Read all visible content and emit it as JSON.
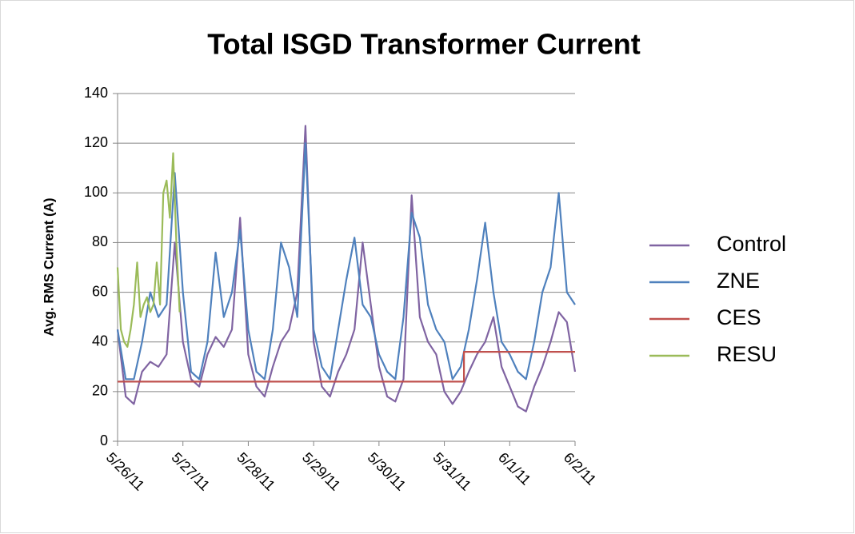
{
  "chart_data": {
    "type": "line",
    "title": "Total ISGD Transformer Current",
    "y_label": "Avg. RMS Current (A)",
    "xlim": [
      0,
      7
    ],
    "xticks": [
      {
        "value": 0,
        "label": "5/26/11"
      },
      {
        "value": 1,
        "label": "5/27/11"
      },
      {
        "value": 2,
        "label": "5/28/11"
      },
      {
        "value": 3,
        "label": "5/29/11"
      },
      {
        "value": 4,
        "label": "5/30/11"
      },
      {
        "value": 5,
        "label": "5/31/11"
      },
      {
        "value": 6,
        "label": "6/1/11"
      },
      {
        "value": 7,
        "label": "6/2/11"
      }
    ],
    "ylim": [
      0,
      140
    ],
    "yticks": [
      0,
      20,
      40,
      60,
      80,
      100,
      120,
      140
    ],
    "grid": true,
    "legend": "right",
    "series": [
      {
        "name": "Control",
        "color": "#8064a2",
        "x": [
          0,
          0.125,
          0.25,
          0.375,
          0.5,
          0.625,
          0.75,
          0.875,
          1,
          1.125,
          1.25,
          1.375,
          1.5,
          1.625,
          1.75,
          1.875,
          2,
          2.125,
          2.25,
          2.375,
          2.5,
          2.625,
          2.75,
          2.875,
          3,
          3.125,
          3.25,
          3.375,
          3.5,
          3.625,
          3.75,
          3.875,
          4,
          4.125,
          4.25,
          4.375,
          4.5,
          4.625,
          4.75,
          4.875,
          5,
          5.125,
          5.25,
          5.375,
          5.5,
          5.625,
          5.75,
          5.875,
          6,
          6.125,
          6.25,
          6.375,
          6.5,
          6.625,
          6.75,
          6.875,
          7
        ],
        "values": [
          45,
          18,
          15,
          28,
          32,
          30,
          35,
          80,
          40,
          25,
          22,
          35,
          42,
          38,
          45,
          90,
          35,
          22,
          18,
          30,
          40,
          45,
          60,
          127,
          40,
          22,
          18,
          28,
          35,
          45,
          80,
          55,
          30,
          18,
          16,
          25,
          99,
          50,
          40,
          35,
          20,
          15,
          20,
          28,
          35,
          40,
          50,
          30,
          22,
          14,
          12,
          22,
          30,
          40,
          52,
          48,
          28
        ]
      },
      {
        "name": "ZNE",
        "color": "#4f81bd",
        "x": [
          0,
          0.125,
          0.25,
          0.375,
          0.5,
          0.625,
          0.75,
          0.875,
          1,
          1.125,
          1.25,
          1.375,
          1.5,
          1.625,
          1.75,
          1.875,
          2,
          2.125,
          2.25,
          2.375,
          2.5,
          2.625,
          2.75,
          2.875,
          3,
          3.125,
          3.25,
          3.375,
          3.5,
          3.625,
          3.75,
          3.875,
          4,
          4.125,
          4.25,
          4.375,
          4.5,
          4.625,
          4.75,
          4.875,
          5,
          5.125,
          5.25,
          5.375,
          5.5,
          5.625,
          5.75,
          5.875,
          6,
          6.125,
          6.25,
          6.375,
          6.5,
          6.625,
          6.75,
          6.875,
          7
        ],
        "values": [
          45,
          25,
          25,
          40,
          60,
          50,
          55,
          108,
          60,
          28,
          25,
          40,
          76,
          50,
          60,
          85,
          45,
          28,
          25,
          45,
          80,
          70,
          50,
          120,
          45,
          30,
          25,
          45,
          65,
          82,
          55,
          50,
          35,
          28,
          25,
          50,
          92,
          82,
          55,
          45,
          40,
          25,
          30,
          45,
          65,
          88,
          60,
          40,
          35,
          28,
          25,
          40,
          60,
          70,
          100,
          60,
          55
        ]
      },
      {
        "name": "CES",
        "color": "#c0504d",
        "x": [
          0,
          5.3,
          5.3,
          7
        ],
        "values": [
          24,
          24,
          36,
          36
        ]
      },
      {
        "name": "RESU",
        "color": "#9bbb59",
        "x": [
          0,
          0.05,
          0.1,
          0.15,
          0.2,
          0.25,
          0.3,
          0.35,
          0.4,
          0.45,
          0.5,
          0.55,
          0.6,
          0.65,
          0.7,
          0.75,
          0.8,
          0.85,
          0.9,
          0.95
        ],
        "values": [
          70,
          45,
          40,
          38,
          45,
          55,
          72,
          50,
          55,
          58,
          52,
          55,
          72,
          55,
          100,
          105,
          90,
          116,
          80,
          52
        ]
      }
    ]
  }
}
